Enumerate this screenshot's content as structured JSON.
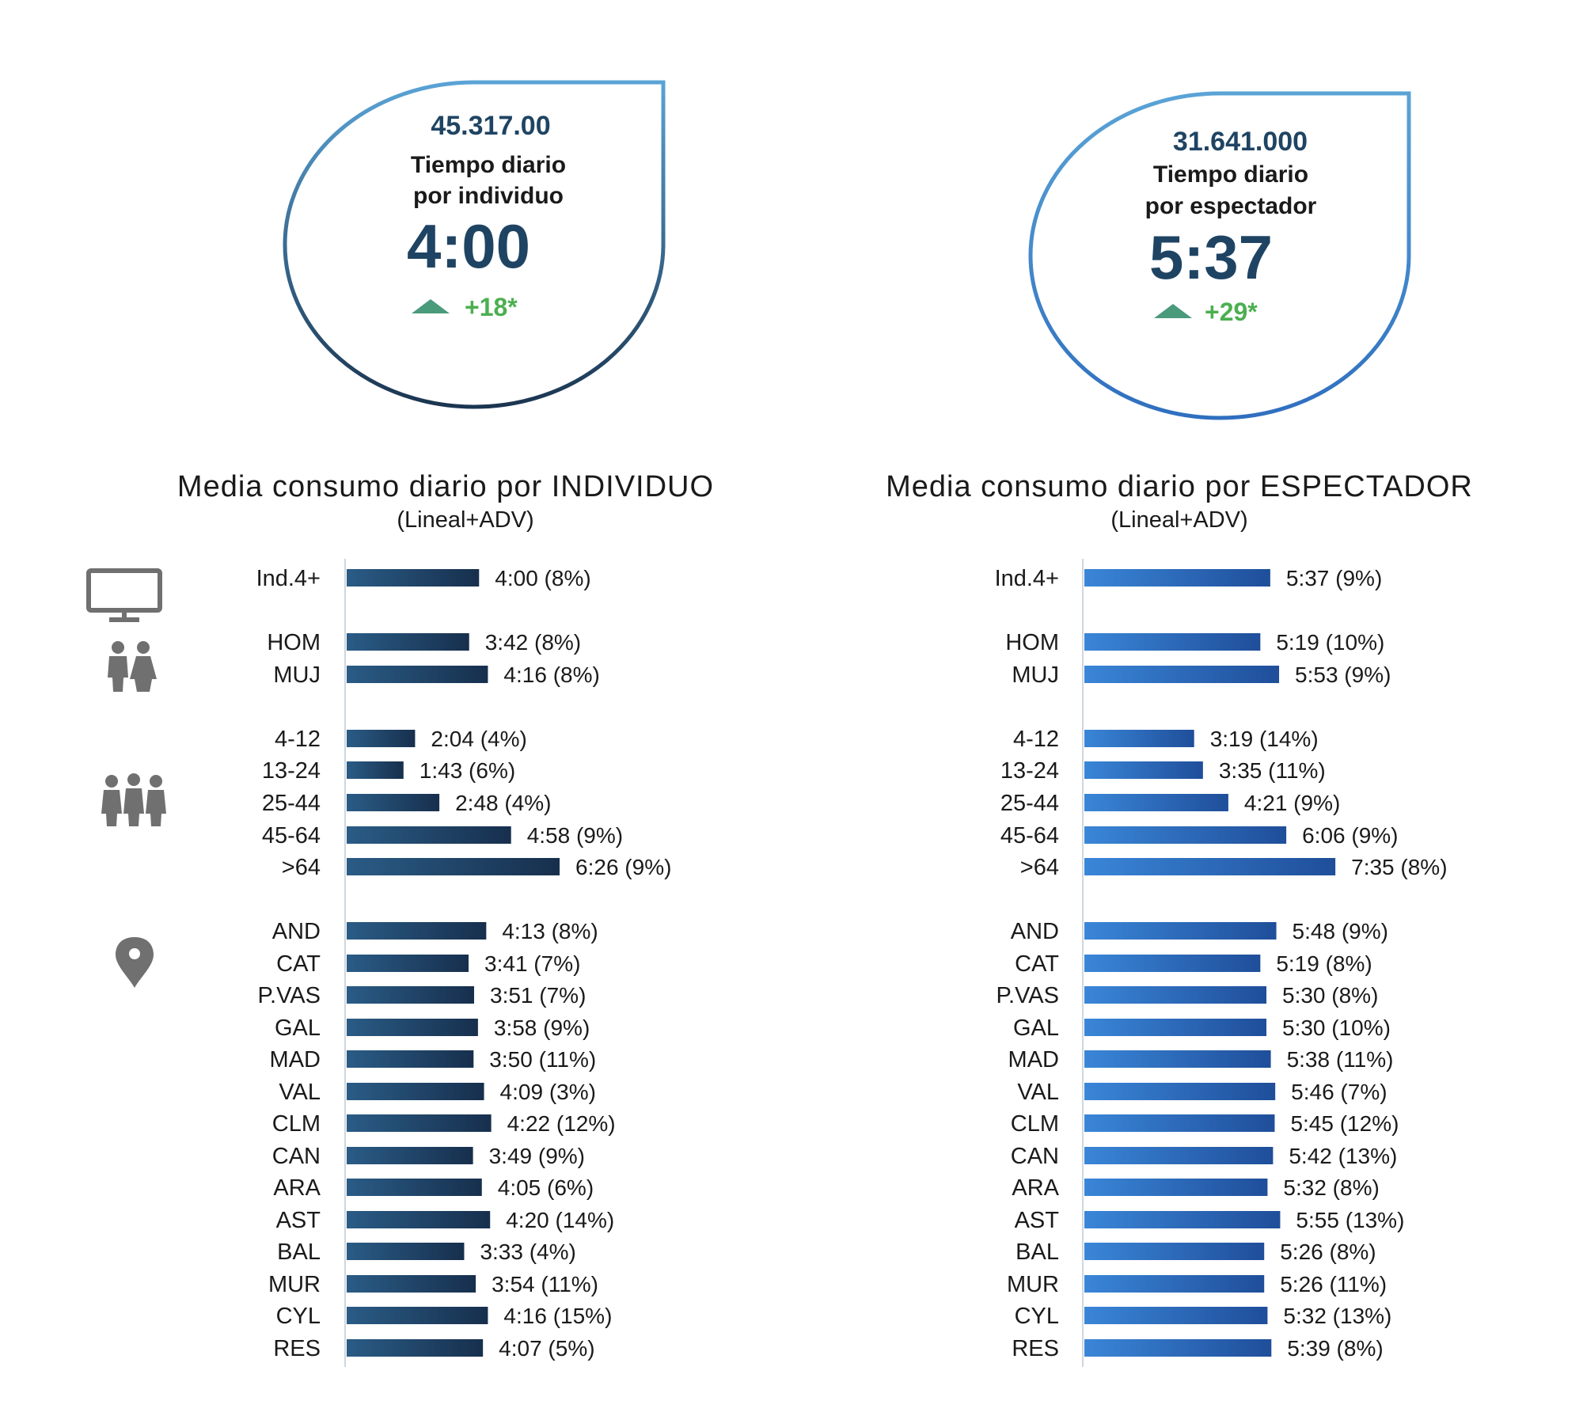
{
  "colors": {
    "dark_navy": "#1f4463",
    "mid_blue": "#2f6fbf",
    "bright_blue": "#3a7fd4",
    "green": "#4caf50",
    "axis_gray": "#cfd6de",
    "icon_gray": "#707070",
    "text": "#1a1a1a"
  },
  "icons": [
    "tv-icon",
    "couple-icon",
    "group-icon",
    "location-pin-icon"
  ],
  "kpis": [
    {
      "audience": "45.317.00",
      "label_line1": "Tiempo diario",
      "label_line2": "por individuo",
      "time": "4:00",
      "change": "+18*",
      "trend": "up"
    },
    {
      "audience": "31.641.000",
      "label_line1": "Tiempo diario",
      "label_line2": "por espectador",
      "time": "5:37",
      "change": "+29*",
      "trend": "up"
    }
  ],
  "chart_data": [
    {
      "type": "bar",
      "orientation": "horizontal",
      "title": "Media consumo diario por INDIVIDUO",
      "subtitle": "(Lineal+ADV)",
      "unit": "minutes",
      "categories": [
        "Ind.4+",
        "HOM",
        "MUJ",
        "4-12",
        "13-24",
        "25-44",
        "45-64",
        ">64",
        "AND",
        "CAT",
        "P.VAS",
        "GAL",
        "MAD",
        "VAL",
        "CLM",
        "CAN",
        "ARA",
        "AST",
        "BAL",
        "MUR",
        "CYL",
        "RES"
      ],
      "groups": [
        {
          "name": "total",
          "categories": [
            "Ind.4+"
          ]
        },
        {
          "name": "sexo",
          "categories": [
            "HOM",
            "MUJ"
          ]
        },
        {
          "name": "edad",
          "categories": [
            "4-12",
            "13-24",
            "25-44",
            "45-64",
            ">64"
          ]
        },
        {
          "name": "region",
          "categories": [
            "AND",
            "CAT",
            "P.VAS",
            "GAL",
            "MAD",
            "VAL",
            "CLM",
            "CAN",
            "ARA",
            "AST",
            "BAL",
            "MUR",
            "CYL",
            "RES"
          ]
        }
      ],
      "values": [
        240,
        222,
        256,
        124,
        103,
        168,
        298,
        386,
        253,
        221,
        231,
        238,
        230,
        249,
        262,
        229,
        245,
        260,
        213,
        234,
        256,
        247
      ],
      "labels": [
        "4:00 (8%)",
        "3:42 (8%)",
        "4:16 (8%)",
        "2:04 (4%)",
        "1:43 (6%)",
        "2:48 (4%)",
        "4:58 (9%)",
        "6:26 (9%)",
        "4:13 (8%)",
        "3:41 (7%)",
        "3:51 (7%)",
        "3:58 (9%)",
        "3:50 (11%)",
        "4:09 (3%)",
        "4:22 (12%)",
        "3:49 (9%)",
        "4:05 (6%)",
        "4:20 (14%)",
        "3:33 (4%)",
        "3:54 (11%)",
        "4:16 (15%)",
        "4:07 (5%)"
      ],
      "xlim": [
        0,
        480
      ]
    },
    {
      "type": "bar",
      "orientation": "horizontal",
      "title": "Media consumo diario por ESPECTADOR",
      "subtitle": "(Lineal+ADV)",
      "unit": "minutes",
      "categories": [
        "Ind.4+",
        "HOM",
        "MUJ",
        "4-12",
        "13-24",
        "25-44",
        "45-64",
        ">64",
        "AND",
        "CAT",
        "P.VAS",
        "GAL",
        "MAD",
        "VAL",
        "CLM",
        "CAN",
        "ARA",
        "AST",
        "BAL",
        "MUR",
        "CYL",
        "RES"
      ],
      "groups": [
        {
          "name": "total",
          "categories": [
            "Ind.4+"
          ]
        },
        {
          "name": "sexo",
          "categories": [
            "HOM",
            "MUJ"
          ]
        },
        {
          "name": "edad",
          "categories": [
            "4-12",
            "13-24",
            "25-44",
            "45-64",
            ">64"
          ]
        },
        {
          "name": "region",
          "categories": [
            "AND",
            "CAT",
            "P.VAS",
            "GAL",
            "MAD",
            "VAL",
            "CLM",
            "CAN",
            "ARA",
            "AST",
            "BAL",
            "MUR",
            "CYL",
            "RES"
          ]
        }
      ],
      "values": [
        337,
        319,
        353,
        199,
        215,
        261,
        366,
        455,
        348,
        319,
        330,
        330,
        338,
        346,
        345,
        342,
        332,
        355,
        326,
        326,
        332,
        339
      ],
      "labels": [
        "5:37 (9%)",
        "5:19 (10%)",
        "5:53 (9%)",
        "3:19 (14%)",
        "3:35 (11%)",
        "4:21 (9%)",
        "6:06 (9%)",
        "7:35 (8%)",
        "5:48 (9%)",
        "5:19 (8%)",
        "5:30 (8%)",
        "5:30 (10%)",
        "5:38 (11%)",
        "5:46 (7%)",
        "5:45 (12%)",
        "5:42 (13%)",
        "5:32 (8%)",
        "5:55 (13%)",
        "5:26 (8%)",
        "5:26 (11%)",
        "5:32 (13%)",
        "5:39 (8%)"
      ],
      "xlim": [
        0,
        480
      ]
    }
  ]
}
